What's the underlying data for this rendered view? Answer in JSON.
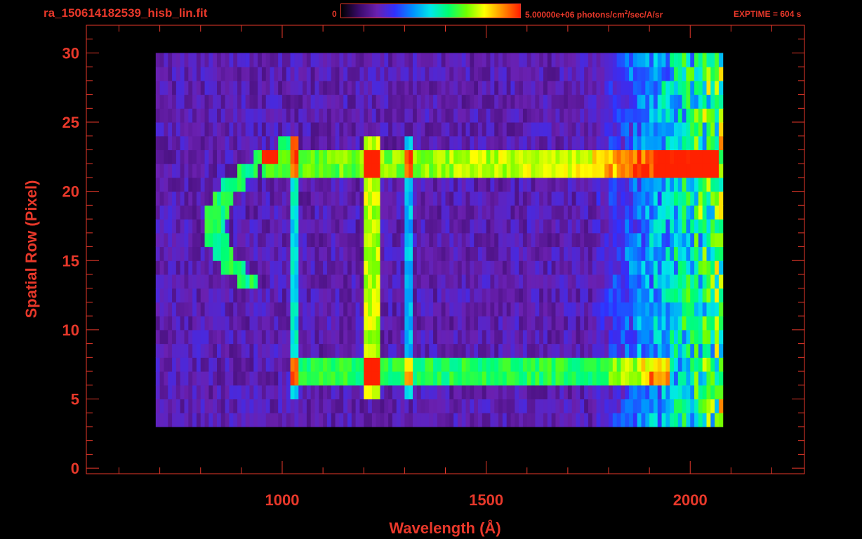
{
  "header": {
    "filename": "ra_150614182539_hisb_lin.fit",
    "colorbar_min_label": "0",
    "colorbar_max_label": "5.00000e+06 photons/cm",
    "colorbar_max_sup": "2",
    "colorbar_max_tail": "/sec/A/sr",
    "exptime_label": "EXPTIME = 604 s"
  },
  "colors": {
    "text": "#e8382a",
    "axes": "#e8382a",
    "background": "#000000",
    "colormap": [
      "#000000",
      "#3a0a6a",
      "#6a20b0",
      "#3030ff",
      "#0090ff",
      "#00e8e8",
      "#00ff70",
      "#70ff00",
      "#ffff00",
      "#ff9000",
      "#ff2000"
    ]
  },
  "chart_data": {
    "type": "heatmap",
    "title": "ra_150614182539_hisb_lin.fit",
    "xlabel": "Wavelength (Å)",
    "ylabel": "Spatial Row (Pixel)",
    "xlim": [
      520,
      2280
    ],
    "ylim": [
      -0.4,
      32
    ],
    "x_ticks": [
      1000,
      1500,
      2000
    ],
    "y_ticks": [
      0,
      5,
      10,
      15,
      20,
      25,
      30
    ],
    "colorbar_range": [
      0,
      5000000
    ],
    "colorbar_units": "photons/cm^2/sec/A/sr",
    "exptime_s": 604,
    "data_extent": {
      "x": [
        690,
        2075
      ],
      "rows": [
        3,
        30
      ]
    },
    "features": [
      {
        "name": "",
        "type": "emission-line",
        "wavelength": 1216,
        "rows": [
          5,
          24
        ],
        "intensity": 0.55
      },
      {
        "name": "",
        "type": "emission-line",
        "wavelength": 1026,
        "rows": [
          5,
          24
        ],
        "intensity": 0.3
      },
      {
        "name": "",
        "type": "emission-line",
        "wavelength": 1304,
        "rows": [
          5,
          24
        ],
        "intensity": 0.25
      },
      {
        "name": "",
        "type": "continuum-band",
        "rows": [
          6,
          8
        ],
        "x": [
          1020,
          1940
        ],
        "intensity": 0.42
      },
      {
        "name": "",
        "type": "continuum-band",
        "rows": [
          21,
          23
        ],
        "x": [
          950,
          2060
        ],
        "intensity": 0.45
      },
      {
        "name": "",
        "type": "arc",
        "center_row": 17,
        "rows": [
          13,
          24
        ],
        "x": [
          810,
          930
        ],
        "intensity": 0.4
      }
    ]
  }
}
